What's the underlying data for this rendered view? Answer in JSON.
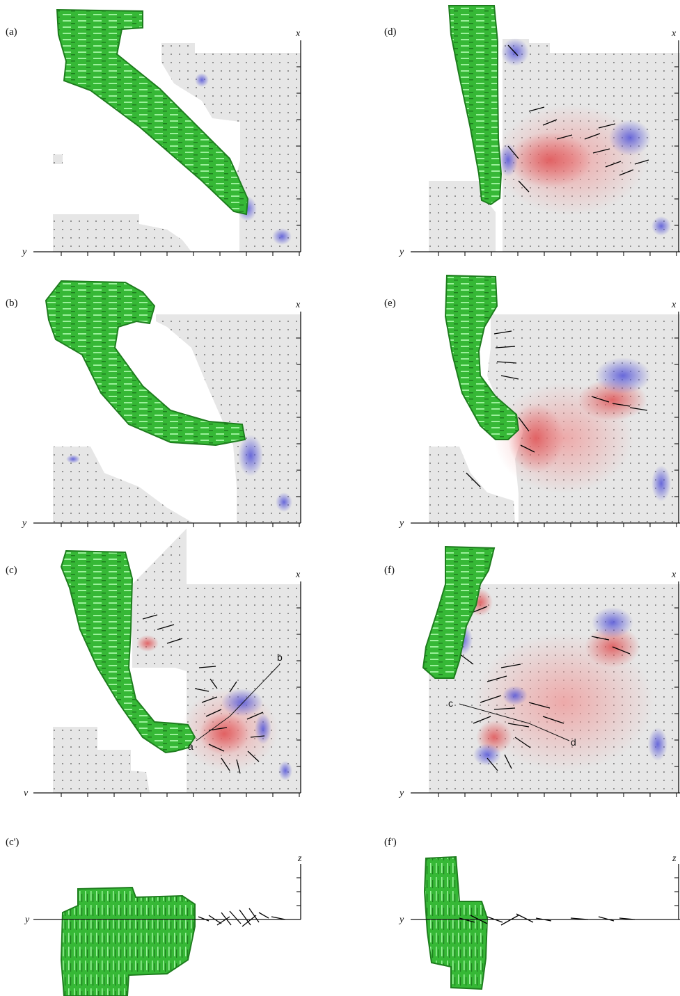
{
  "panels": [
    {
      "id": "a",
      "label": "(a)",
      "y_axis": "y",
      "x_axis": "x",
      "view": "top"
    },
    {
      "id": "b",
      "label": "(b)",
      "y_axis": "y",
      "x_axis": "x",
      "view": "top"
    },
    {
      "id": "c",
      "label": "(c)",
      "y_axis": "v",
      "x_axis": "x",
      "view": "top",
      "annotations": [
        "a",
        "b"
      ]
    },
    {
      "id": "c_prime",
      "label": "(c')",
      "y_axis": "y",
      "x_axis": "z",
      "view": "side"
    },
    {
      "id": "d",
      "label": "(d)",
      "y_axis": "y",
      "x_axis": "x",
      "view": "top"
    },
    {
      "id": "e",
      "label": "(e)",
      "y_axis": "y",
      "x_axis": "x",
      "view": "top"
    },
    {
      "id": "f",
      "label": "(f)",
      "y_axis": "y",
      "x_axis": "x",
      "view": "top",
      "annotations": [
        "c",
        "d"
      ]
    },
    {
      "id": "f_prime",
      "label": "(f')",
      "y_axis": "y",
      "x_axis": "z",
      "view": "side"
    }
  ],
  "colors": {
    "body_fill": "#3cbf3c",
    "body_light": "#7ee07e",
    "body_dark": "#1f7a1f",
    "field_bg": "#e4e4e4",
    "positive": "#e0585a",
    "negative": "#5a5ad8",
    "vector": "#000000",
    "axis": "#111111"
  }
}
